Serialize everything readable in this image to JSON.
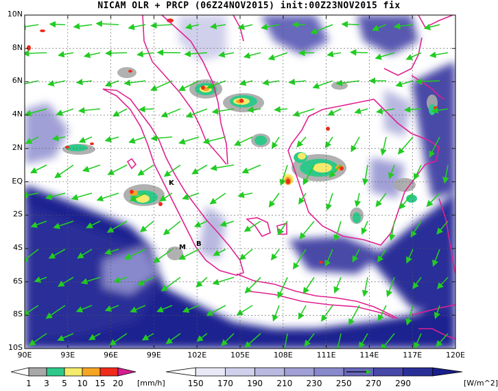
{
  "title": "NICAM OLR + PRCP (06Z24NOV2015) init:00Z23NOV2015 fix",
  "map": {
    "lat_labels": [
      "10N",
      "8N",
      "6N",
      "4N",
      "2N",
      "EQ",
      "2S",
      "4S",
      "6S",
      "8S",
      "10S"
    ],
    "lon_labels": [
      "90E",
      "93E",
      "96E",
      "99E",
      "102E",
      "105E",
      "108E",
      "111E",
      "114E",
      "117E",
      "120E"
    ],
    "place_labels": [
      {
        "id": "K",
        "text": "K"
      },
      {
        "id": "M",
        "text": "M"
      },
      {
        "id": "B",
        "text": "B"
      }
    ],
    "colors": {
      "coastline": "#e0208f",
      "wind_vector": "#22cc22",
      "ocean_dark": "#1a1f8c"
    }
  },
  "precip_colorbar": {
    "labels": [
      "1",
      "3",
      "5",
      "10",
      "15",
      "20"
    ],
    "unit": "[mm/h]",
    "colors": [
      "#ffffff",
      "#a8a8a8",
      "#2ec98a",
      "#f5ea6b",
      "#f5a524",
      "#ef2b1b",
      "#d61e8f"
    ]
  },
  "olr_colorbar": {
    "labels": [
      "150",
      "170",
      "190",
      "210",
      "230",
      "250",
      "270",
      "290"
    ],
    "unit": "[W/m^2]",
    "colors": [
      "#ffffff",
      "#e8e8f6",
      "#d0d0ec",
      "#b8b8e0",
      "#a0a0d6",
      "#8888cc",
      "#6868bc",
      "#4848a8",
      "#2a2f98",
      "#1a1f8c"
    ]
  }
}
